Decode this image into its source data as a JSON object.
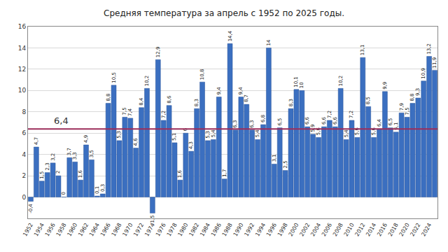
{
  "chart_data": {
    "type": "bar",
    "title": "Средняя температура за апрель с 1952 по 2025 годы.",
    "categories": [
      "1952",
      null,
      "1954",
      null,
      "1956",
      null,
      "1958",
      null,
      "1960",
      null,
      "1962",
      null,
      "1964",
      null,
      "1966",
      null,
      "1968",
      null,
      "1970",
      null,
      "1972",
      null,
      "1974",
      null,
      "1976",
      null,
      "1978",
      null,
      "1980",
      null,
      "1982",
      null,
      "1984",
      null,
      "1986",
      null,
      "1988",
      null,
      "1990",
      null,
      "1992",
      null,
      "1994",
      null,
      "1996",
      null,
      "1998",
      null,
      "2000",
      null,
      "2002",
      null,
      "2004",
      null,
      "2006",
      null,
      "2008",
      null,
      "2010",
      null,
      "2012",
      null,
      "2014",
      null,
      "2016",
      null,
      "2018",
      null,
      "2020",
      null,
      "2022",
      null,
      "2024",
      null
    ],
    "values": [
      -0.4,
      4.7,
      1.5,
      2.3,
      3.2,
      2,
      0,
      3.7,
      3.3,
      1.6,
      4.9,
      3.5,
      0.1,
      0.3,
      8.8,
      10.5,
      5.3,
      7.5,
      7.4,
      4.6,
      8.4,
      10.2,
      -1.5,
      12.9,
      7.2,
      8.6,
      5.1,
      1.6,
      6,
      4.3,
      8.3,
      10.8,
      5.3,
      5.4,
      9.4,
      1.7,
      14.4,
      6.3,
      9.4,
      8.7,
      6.3,
      5.4,
      6.8,
      14,
      3.1,
      6.5,
      2.5,
      8.3,
      10.1,
      10,
      6.6,
      5.9,
      5.6,
      6.6,
      7.2,
      6.6,
      10.2,
      5.4,
      7.2,
      5.6,
      13.1,
      8.5,
      5.6,
      6.4,
      9.9,
      6.5,
      6.1,
      7.9,
      7.5,
      8.8,
      9.3,
      10.9,
      13.2,
      11.9
    ],
    "value_labels": [
      "-0,4",
      "4,7",
      "1,5",
      "2,3",
      "3,2",
      "2",
      "0",
      "3,7",
      "3,3",
      "1,6",
      "4,9",
      "3,5",
      "0,1",
      "0,3",
      "8,8",
      "10,5",
      "5,3",
      "7,5",
      "7,4",
      "4,6",
      "8,4",
      "10,2",
      "-1,5",
      "12,9",
      "7,2",
      "8,6",
      "5,1",
      "1,6",
      "6",
      "4,3",
      "8,3",
      "10,8",
      "5,3",
      "5,4",
      "9,4",
      "1,7",
      "14,4",
      "6,3",
      "9,4",
      "8,7",
      "6,3",
      "5,4",
      "6,8",
      "14",
      "3,1",
      "6,5",
      "2,5",
      "8,3",
      "10,1",
      "10",
      "6,6",
      "5,9",
      "5,6",
      "6,6",
      "7,2",
      "6,6",
      "10,2",
      "5,4",
      "7,2",
      "5,6",
      "13,1",
      "8,5",
      "5,6",
      "6,4",
      "9,9",
      "6,5",
      "6,1",
      "7,9",
      "7,5",
      "8,8",
      "9,3",
      "10,9",
      "13,2",
      "11,9"
    ],
    "color": "#3b6fc0",
    "data_labels": true,
    "ylim": [
      -2,
      16
    ],
    "yticks": [
      0,
      2,
      4,
      6,
      8,
      10,
      12,
      14,
      16
    ],
    "grid": true,
    "annotations": [
      {
        "text": "6,4",
        "y": 6.4,
        "color": "#9b2d5a"
      }
    ]
  }
}
